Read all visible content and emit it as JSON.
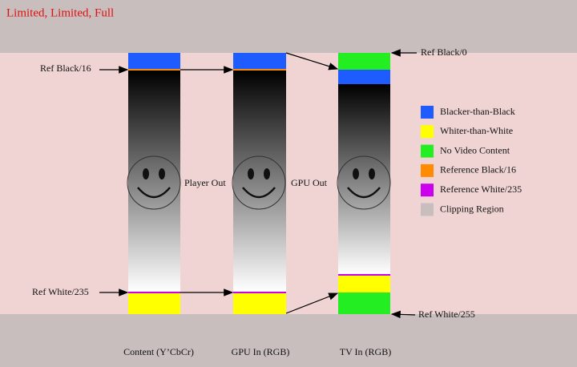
{
  "title": "Limited, Limited, Full",
  "annotations": {
    "ref_black_16": "Ref Black/16",
    "ref_black_0": "Ref Black/0",
    "ref_white_235": "Ref White/235",
    "ref_white_255": "Ref White/255",
    "player_out": "Player Out",
    "gpu_out": "GPU Out"
  },
  "columns": [
    "Content (Y’CbCr)",
    "GPU In (RGB)",
    "TV In (RGB)"
  ],
  "legend": [
    {
      "label": "Blacker-than-Black",
      "color": "#1e5cff"
    },
    {
      "label": "Whiter-than-White",
      "color": "#ffff00"
    },
    {
      "label": "No Video Content",
      "color": "#22ee22"
    },
    {
      "label": "Reference Black/16",
      "color": "#ff8c00"
    },
    {
      "label": "Reference White/235",
      "color": "#cc00ee"
    },
    {
      "label": "Clipping Region",
      "color": "#c8bebe"
    }
  ]
}
